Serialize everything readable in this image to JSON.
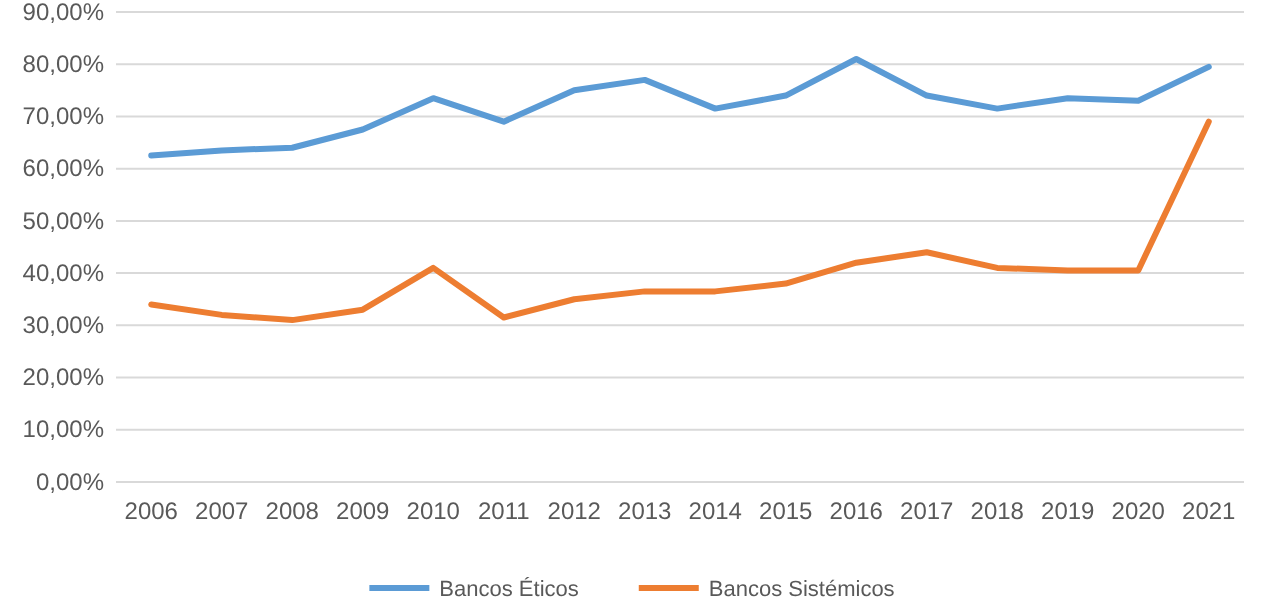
{
  "chart_data": {
    "type": "line",
    "categories": [
      "2006",
      "2007",
      "2008",
      "2009",
      "2010",
      "2011",
      "2012",
      "2013",
      "2014",
      "2015",
      "2016",
      "2017",
      "2018",
      "2019",
      "2020",
      "2021"
    ],
    "series": [
      {
        "name": "Bancos Éticos",
        "color": "#5b9bd5",
        "values": [
          62.5,
          63.5,
          64,
          67.5,
          73.5,
          69,
          75,
          77,
          71.5,
          74,
          81,
          74,
          71.5,
          73.5,
          73,
          79.5
        ]
      },
      {
        "name": "Bancos Sistémicos",
        "color": "#ed7d31",
        "values": [
          34,
          32,
          31,
          33,
          41,
          31.5,
          35,
          36.5,
          36.5,
          38,
          42,
          44,
          41,
          40.5,
          40.5,
          69
        ]
      }
    ],
    "ylim": [
      0,
      90
    ],
    "yticks": [
      {
        "value": 0,
        "label": "0,00%"
      },
      {
        "value": 10,
        "label": "10,00%"
      },
      {
        "value": 20,
        "label": "20,00%"
      },
      {
        "value": 30,
        "label": "30,00%"
      },
      {
        "value": 40,
        "label": "40,00%"
      },
      {
        "value": 50,
        "label": "50,00%"
      },
      {
        "value": 60,
        "label": "60,00%"
      },
      {
        "value": 70,
        "label": "70,00%"
      },
      {
        "value": 80,
        "label": "80,00%"
      },
      {
        "value": 90,
        "label": "90,00%"
      }
    ],
    "grid": "y",
    "legend": "bottom",
    "marker": "none",
    "line_style": "solid"
  }
}
